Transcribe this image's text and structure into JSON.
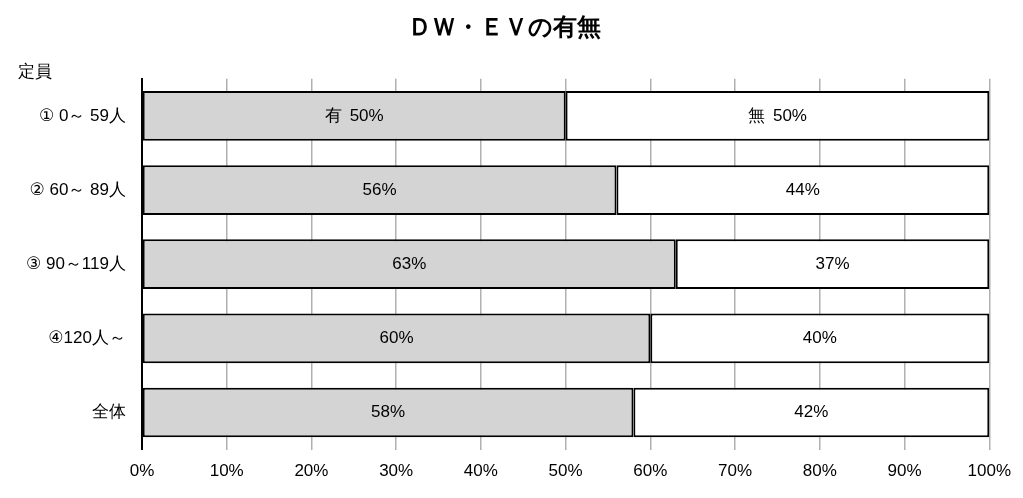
{
  "chart_data": {
    "type": "bar",
    "orientation": "horizontal",
    "stacked": true,
    "title": "ＤＷ・ＥＶの有無",
    "ylabel": "定員",
    "categories": [
      "① 0～ 59人",
      "② 60～ 89人",
      "③ 90～119人",
      "④120人～",
      "全体"
    ],
    "series": [
      {
        "name": "有",
        "color": "#d4d4d4",
        "values": [
          50,
          56,
          63,
          60,
          58
        ],
        "value_labels": [
          "50%",
          "56%",
          "63%",
          "60%",
          "58%"
        ]
      },
      {
        "name": "無",
        "color": "#ffffff",
        "values": [
          50,
          44,
          37,
          40,
          42
        ],
        "value_labels": [
          "50%",
          "44%",
          "37%",
          "40%",
          "42%"
        ]
      }
    ],
    "xlim": [
      0,
      100
    ],
    "xticks": [
      {
        "value": 0,
        "label": "0%"
      },
      {
        "value": 10,
        "label": "10%"
      },
      {
        "value": 20,
        "label": "20%"
      },
      {
        "value": 30,
        "label": "30%"
      },
      {
        "value": 40,
        "label": "40%"
      },
      {
        "value": 50,
        "label": "50%"
      },
      {
        "value": 60,
        "label": "60%"
      },
      {
        "value": 70,
        "label": "70%"
      },
      {
        "value": 80,
        "label": "80%"
      },
      {
        "value": 90,
        "label": "90%"
      },
      {
        "value": 100,
        "label": "100%"
      }
    ],
    "grid": "x",
    "legend": false
  }
}
